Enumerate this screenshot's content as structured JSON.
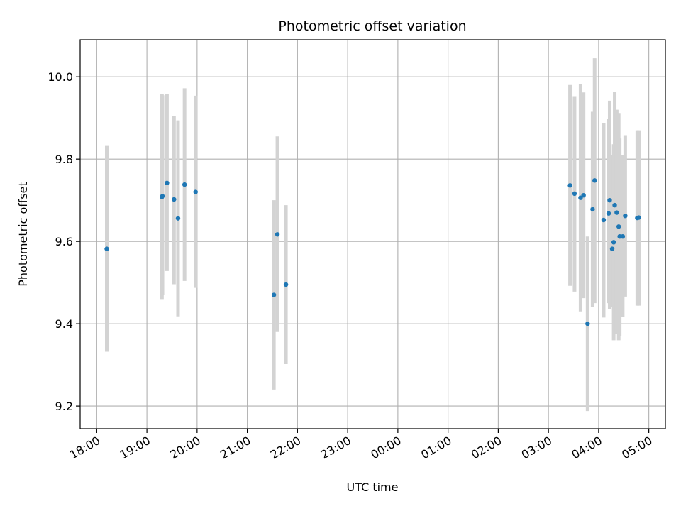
{
  "chart_data": {
    "type": "scatter",
    "title": "Photometric offset variation",
    "xlabel": "UTC time",
    "ylabel": "Photometric offset",
    "x_unit": "UTC time (hours; values past 24 are the following day)",
    "xlim": [
      17.67,
      29.33
    ],
    "ylim": [
      9.145,
      10.09
    ],
    "x_ticks": [
      18,
      19,
      20,
      21,
      22,
      23,
      24,
      25,
      26,
      27,
      28,
      29
    ],
    "x_tick_labels": [
      "18:00",
      "19:00",
      "20:00",
      "21:00",
      "22:00",
      "23:00",
      "00:00",
      "01:00",
      "02:00",
      "03:00",
      "04:00",
      "05:00"
    ],
    "y_ticks": [
      9.2,
      9.4,
      9.6,
      9.8,
      10.0
    ],
    "y_tick_labels": [
      "9.2",
      "9.4",
      "9.6",
      "9.8",
      "10.0"
    ],
    "grid": true,
    "colors": {
      "point": "#1f77b4",
      "errorbar": "#d3d3d3",
      "grid": "#b0b0b0"
    },
    "points": [
      {
        "x": 18.2,
        "y": 9.582,
        "lo": 9.332,
        "hi": 9.832
      },
      {
        "x": 19.3,
        "y": 9.708,
        "lo": 9.46,
        "hi": 9.958
      },
      {
        "x": 19.31,
        "y": 9.71,
        "lo": 9.47,
        "hi": 9.955
      },
      {
        "x": 19.4,
        "y": 9.742,
        "lo": 9.528,
        "hi": 9.958
      },
      {
        "x": 19.54,
        "y": 9.702,
        "lo": 9.496,
        "hi": 9.905
      },
      {
        "x": 19.62,
        "y": 9.656,
        "lo": 9.418,
        "hi": 9.894
      },
      {
        "x": 19.75,
        "y": 9.738,
        "lo": 9.504,
        "hi": 9.972
      },
      {
        "x": 19.97,
        "y": 9.72,
        "lo": 9.487,
        "hi": 9.954
      },
      {
        "x": 21.53,
        "y": 9.47,
        "lo": 9.24,
        "hi": 9.7
      },
      {
        "x": 21.6,
        "y": 9.617,
        "lo": 9.38,
        "hi": 9.855
      },
      {
        "x": 21.77,
        "y": 9.495,
        "lo": 9.302,
        "hi": 9.688
      },
      {
        "x": 27.43,
        "y": 9.736,
        "lo": 9.492,
        "hi": 9.98
      },
      {
        "x": 27.52,
        "y": 9.716,
        "lo": 9.478,
        "hi": 9.953
      },
      {
        "x": 27.64,
        "y": 9.706,
        "lo": 9.43,
        "hi": 9.983
      },
      {
        "x": 27.7,
        "y": 9.712,
        "lo": 9.462,
        "hi": 9.962
      },
      {
        "x": 27.78,
        "y": 9.4,
        "lo": 9.188,
        "hi": 9.612
      },
      {
        "x": 27.88,
        "y": 9.678,
        "lo": 9.44,
        "hi": 9.915
      },
      {
        "x": 27.92,
        "y": 9.748,
        "lo": 9.45,
        "hi": 10.045
      },
      {
        "x": 28.1,
        "y": 9.652,
        "lo": 9.415,
        "hi": 9.888
      },
      {
        "x": 28.2,
        "y": 9.668,
        "lo": 9.45,
        "hi": 9.898
      },
      {
        "x": 28.22,
        "y": 9.7,
        "lo": 9.435,
        "hi": 9.942
      },
      {
        "x": 28.27,
        "y": 9.582,
        "lo": 9.44,
        "hi": 9.81
      },
      {
        "x": 28.3,
        "y": 9.598,
        "lo": 9.36,
        "hi": 9.836
      },
      {
        "x": 28.32,
        "y": 9.688,
        "lo": 9.42,
        "hi": 9.963
      },
      {
        "x": 28.36,
        "y": 9.67,
        "lo": 9.375,
        "hi": 9.92
      },
      {
        "x": 28.4,
        "y": 9.636,
        "lo": 9.36,
        "hi": 9.912
      },
      {
        "x": 28.42,
        "y": 9.612,
        "lo": 9.37,
        "hi": 9.85
      },
      {
        "x": 28.48,
        "y": 9.612,
        "lo": 9.416,
        "hi": 9.81
      },
      {
        "x": 28.53,
        "y": 9.662,
        "lo": 9.466,
        "hi": 9.858
      },
      {
        "x": 28.77,
        "y": 9.657,
        "lo": 9.444,
        "hi": 9.87
      },
      {
        "x": 28.8,
        "y": 9.658,
        "lo": 9.444,
        "hi": 9.87
      }
    ]
  }
}
